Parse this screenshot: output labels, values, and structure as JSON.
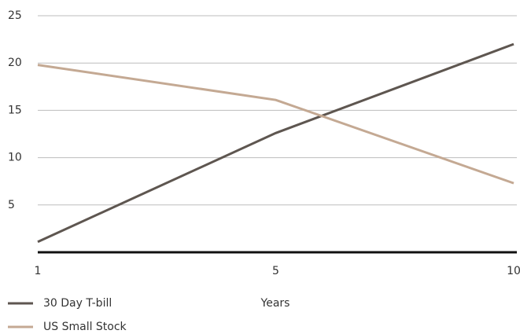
{
  "chart_data": {
    "type": "line",
    "categories": [
      "1",
      "5",
      "10"
    ],
    "x_label": "Years",
    "series": [
      {
        "name": "30 Day T-bill",
        "color": "#5e5650",
        "values": [
          1.1,
          12.6,
          22.0
        ]
      },
      {
        "name": "US Small Stock",
        "color": "#c4a993",
        "values": [
          19.8,
          16.1,
          7.3
        ]
      }
    ],
    "ylim": [
      0,
      25
    ],
    "yticks": [
      5,
      10,
      15,
      20,
      25
    ],
    "grid": true
  }
}
